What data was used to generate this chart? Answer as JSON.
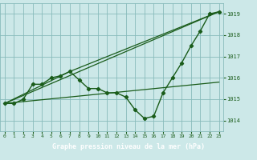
{
  "title": "Graphe pression niveau de la mer (hPa)",
  "background_color": "#cce8e8",
  "plot_bg_color": "#cce8e8",
  "grid_color": "#88bbbb",
  "line_color": "#1a5c1a",
  "title_bg": "#2a6e2a",
  "title_fg": "#ffffff",
  "ylim": [
    1013.5,
    1019.5
  ],
  "xlim": [
    -0.5,
    23.5
  ],
  "yticks": [
    1014,
    1015,
    1016,
    1017,
    1018,
    1019
  ],
  "xticks": [
    0,
    1,
    2,
    3,
    4,
    5,
    6,
    7,
    8,
    9,
    10,
    11,
    12,
    13,
    14,
    15,
    16,
    17,
    18,
    19,
    20,
    21,
    22,
    23
  ],
  "line1_x": [
    0,
    1,
    2,
    3,
    4,
    5,
    6,
    7,
    8,
    9,
    10,
    11,
    12,
    13,
    14,
    15,
    16,
    17,
    18,
    19,
    20,
    21,
    22,
    23
  ],
  "line1_y": [
    1014.8,
    1014.8,
    1015.0,
    1015.7,
    1015.7,
    1016.0,
    1016.1,
    1016.3,
    1015.9,
    1015.5,
    1015.5,
    1015.3,
    1015.3,
    1015.1,
    1014.5,
    1014.1,
    1014.2,
    1015.3,
    1016.0,
    1016.7,
    1017.5,
    1018.2,
    1019.0,
    1019.1
  ],
  "line2_x": [
    0,
    23
  ],
  "line2_y": [
    1014.8,
    1019.1
  ],
  "line3_x": [
    0,
    7,
    23
  ],
  "line3_y": [
    1014.8,
    1016.3,
    1019.1
  ],
  "line4_x": [
    0,
    23
  ],
  "line4_y": [
    1014.8,
    1015.8
  ]
}
